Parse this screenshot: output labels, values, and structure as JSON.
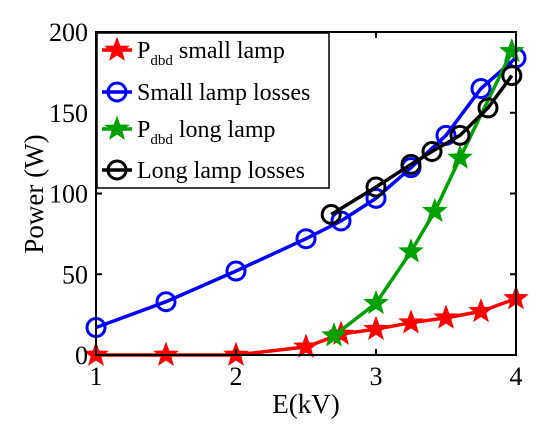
{
  "chart_data": {
    "type": "line",
    "xlabel": "E(kV)",
    "ylabel": "Power (W)",
    "xlim": [
      1,
      4
    ],
    "ylim": [
      0,
      200
    ],
    "x_ticks": [
      "1",
      "2",
      "3",
      "4"
    ],
    "y_ticks": [
      "0",
      "50",
      "100",
      "150",
      "200"
    ],
    "grid": false,
    "legend_position": "top-left",
    "series": [
      {
        "name": "P_dbd small lamp",
        "legend": {
          "main": "P",
          "sub": "dbd",
          "rest": " small lamp"
        },
        "color": "#ff0000",
        "marker": "star",
        "x": [
          1,
          1.5,
          2,
          2.5,
          2.75,
          3,
          3.25,
          3.5,
          3.75,
          4
        ],
        "y": [
          0,
          0,
          0,
          5,
          13,
          16,
          20,
          23,
          27,
          35
        ]
      },
      {
        "name": "Small lamp losses",
        "legend": {
          "main": "Small lamp losses",
          "sub": "",
          "rest": ""
        },
        "color": "#0000ff",
        "marker": "circle",
        "x": [
          1,
          1.5,
          2,
          2.5,
          2.75,
          3,
          3.25,
          3.5,
          3.75,
          4
        ],
        "y": [
          17,
          33,
          52,
          72,
          83,
          97,
          116,
          136,
          165,
          184
        ]
      },
      {
        "name": "P_dbd long lamp",
        "legend": {
          "main": "P",
          "sub": "dbd",
          "rest": " long lamp"
        },
        "color": "#00a000",
        "marker": "star",
        "x": [
          2.7,
          3,
          3.25,
          3.42,
          3.6,
          3.97
        ],
        "y": [
          12,
          32,
          64,
          89,
          122,
          188
        ]
      },
      {
        "name": "Long lamp losses",
        "legend": {
          "main": "Long lamp losses",
          "sub": "",
          "rest": ""
        },
        "color": "#000000",
        "marker": "circle",
        "x": [
          2.68,
          3,
          3.25,
          3.4,
          3.6,
          3.8,
          3.97
        ],
        "y": [
          87,
          104,
          118,
          126,
          136,
          153,
          173
        ]
      }
    ]
  }
}
